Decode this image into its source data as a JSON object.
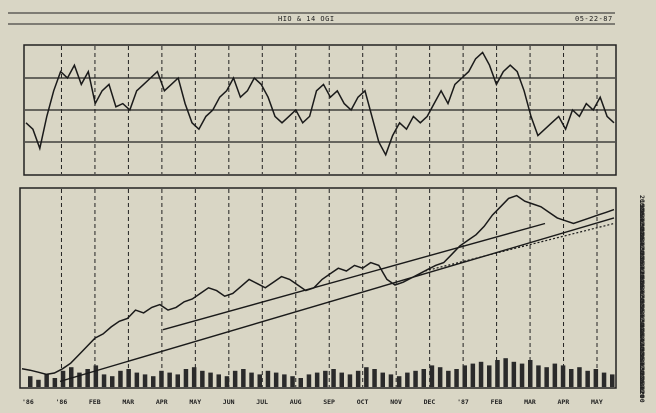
{
  "chart_data": [
    {
      "type": "line",
      "title": "HIO & 14 OGI",
      "date_stamp": "05-22-87",
      "panel": "oscillator",
      "x_labels": [
        "'86",
        "'86",
        "FEB",
        "MAR",
        "APR",
        "MAY",
        "JUN",
        "JUL",
        "AUG",
        "SEP",
        "OCT",
        "NOV",
        "DEC",
        "'87",
        "FEB",
        "MAR",
        "APR",
        "MAY"
      ],
      "grid_lines": 3,
      "series": [
        {
          "values": [
            -0.2,
            -0.3,
            -0.6,
            -0.1,
            0.3,
            0.6,
            0.5,
            0.7,
            0.4,
            0.6,
            0.1,
            0.3,
            0.4,
            0.05,
            0.1,
            0.0,
            0.3,
            0.4,
            0.5,
            0.6,
            0.3,
            0.4,
            0.5,
            0.1,
            -0.2,
            -0.3,
            -0.1,
            0.0,
            0.2,
            0.3,
            0.5,
            0.2,
            0.3,
            0.5,
            0.4,
            0.2,
            -0.1,
            -0.2,
            -0.1,
            0.0,
            -0.2,
            -0.1,
            0.3,
            0.4,
            0.2,
            0.3,
            0.1,
            0.0,
            0.2,
            0.3,
            -0.1,
            -0.5,
            -0.7,
            -0.4,
            -0.2,
            -0.3,
            -0.1,
            -0.2,
            -0.1,
            0.1,
            0.3,
            0.1,
            0.4,
            0.5,
            0.6,
            0.8,
            0.9,
            0.7,
            0.4,
            0.6,
            0.7,
            0.6,
            0.3,
            -0.1,
            -0.4,
            -0.3,
            -0.2,
            -0.1,
            -0.3,
            0.0,
            -0.1,
            0.1,
            0.0,
            0.2,
            -0.1,
            -0.2
          ]
        }
      ]
    },
    {
      "type": "line",
      "panel": "price",
      "x_labels": [
        "'86",
        "'86",
        "FEB",
        "MAR",
        "APR",
        "MAY",
        "JUN",
        "JUL",
        "AUG",
        "SEP",
        "OCT",
        "NOV",
        "DEC",
        "'87",
        "FEB",
        "MAR",
        "APR",
        "MAY"
      ],
      "y_tick_labels": [
        "2000",
        "1980",
        "1960",
        "1940",
        "1920",
        "1900",
        "1880",
        "1860",
        "1840",
        "1820",
        "1800",
        "1780",
        "1760",
        "1740",
        "1720",
        "1700",
        "1680",
        "1660",
        "1640",
        "1620",
        "1600",
        "1580",
        "1560",
        "1540",
        "1520",
        "1500",
        "1480",
        "1460",
        "1440",
        "1420",
        "1400",
        "1380",
        "1360",
        "1340",
        "1320",
        "1300",
        "1280",
        "1260",
        "1240",
        "1220",
        "1200"
      ],
      "series": [
        {
          "values": [
            1240,
            1235,
            1228,
            1220,
            1225,
            1240,
            1260,
            1290,
            1320,
            1350,
            1365,
            1390,
            1410,
            1420,
            1450,
            1440,
            1460,
            1470,
            1450,
            1460,
            1480,
            1490,
            1510,
            1530,
            1520,
            1500,
            1510,
            1535,
            1560,
            1545,
            1530,
            1550,
            1570,
            1560,
            1540,
            1520,
            1530,
            1560,
            1580,
            1600,
            1590,
            1610,
            1600,
            1620,
            1610,
            1560,
            1540,
            1550,
            1565,
            1580,
            1595,
            1610,
            1620,
            1650,
            1680,
            1700,
            1720,
            1750,
            1790,
            1820,
            1850,
            1860,
            1840,
            1830,
            1820,
            1800,
            1780,
            1770,
            1760,
            1770,
            1780,
            1790,
            1800,
            1810
          ]
        },
        {
          "values": [
            1380,
            1620,
            1760
          ]
        },
        {
          "values": [
            1195,
            1440,
            1780
          ]
        },
        {
          "values": [
            1590,
            1680,
            1760
          ]
        }
      ],
      "volume": [
        12,
        8,
        14,
        10,
        18,
        22,
        16,
        20,
        24,
        14,
        12,
        18,
        20,
        16,
        14,
        12,
        18,
        16,
        14,
        20,
        22,
        18,
        16,
        14,
        12,
        18,
        20,
        16,
        14,
        18,
        16,
        14,
        12,
        10,
        14,
        16,
        18,
        20,
        16,
        14,
        18,
        22,
        20,
        16,
        14,
        12,
        16,
        18,
        20,
        24,
        22,
        18,
        20,
        24,
        26,
        28,
        24,
        30,
        32,
        28,
        26,
        30,
        24,
        22,
        26,
        24,
        20,
        22,
        18,
        20,
        16,
        14
      ]
    }
  ]
}
